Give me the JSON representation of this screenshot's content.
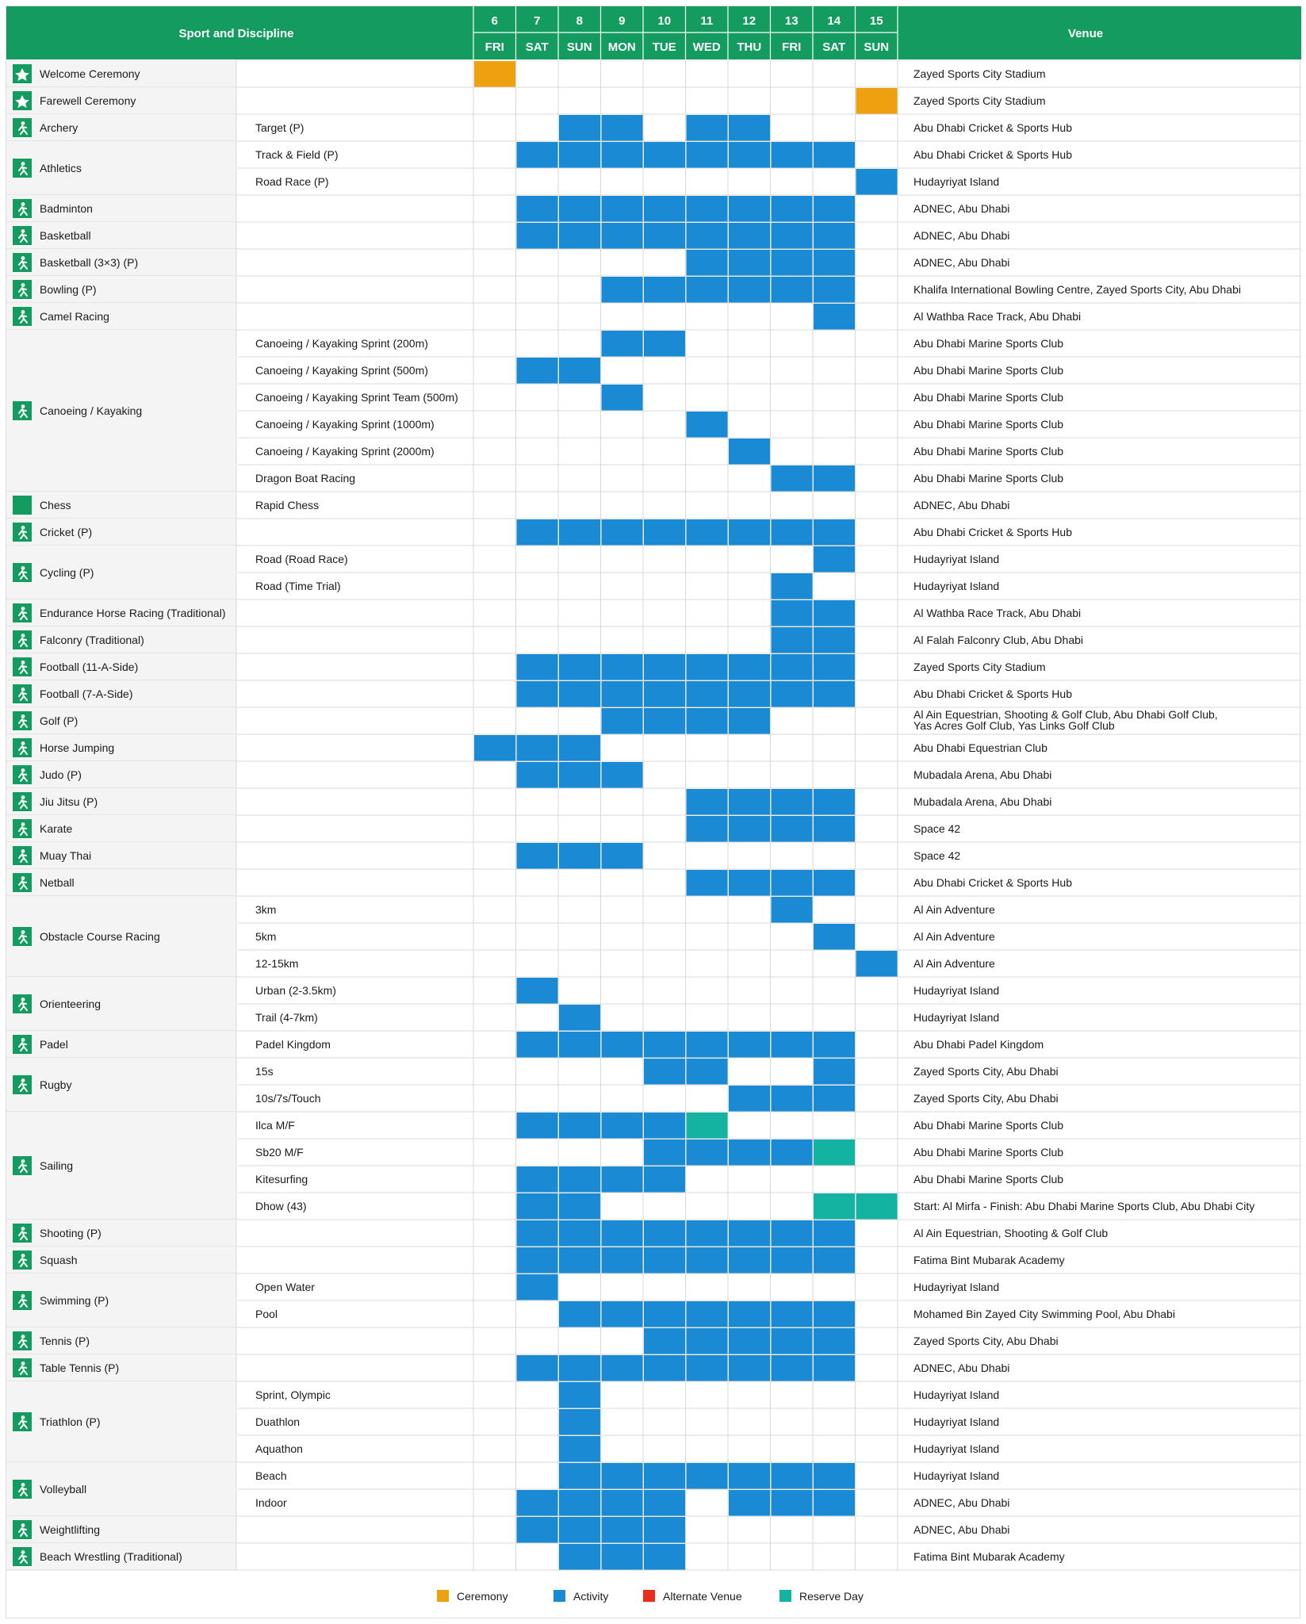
{
  "header": {
    "sport_label": "Sport and Discipline",
    "venue_label": "Venue",
    "days": [
      {
        "num": "6",
        "dow": "FRI"
      },
      {
        "num": "7",
        "dow": "SAT"
      },
      {
        "num": "8",
        "dow": "SUN"
      },
      {
        "num": "9",
        "dow": "MON"
      },
      {
        "num": "10",
        "dow": "TUE"
      },
      {
        "num": "11",
        "dow": "WED"
      },
      {
        "num": "12",
        "dow": "THU"
      },
      {
        "num": "13",
        "dow": "FRI"
      },
      {
        "num": "14",
        "dow": "SAT"
      },
      {
        "num": "15",
        "dow": "SUN"
      }
    ]
  },
  "colors": {
    "header": "#149b5f",
    "ceremony": "#eea10f",
    "activity": "#1a8ad4",
    "alternate": "#ec2b1c",
    "reserve": "#14b2a1",
    "sport_bg": "#f4f4f4",
    "line": "#d9d9d9"
  },
  "sports": [
    {
      "name": "Welcome Ceremony",
      "icon": "star-icon",
      "rows": [
        {
          "discipline": "",
          "venue": "Zayed Sports City Stadium",
          "cells": "C........."
        }
      ]
    },
    {
      "name": "Farewell Ceremony",
      "icon": "star-icon",
      "rows": [
        {
          "discipline": "",
          "venue": "Zayed Sports City Stadium",
          "cells": ".........C"
        }
      ]
    },
    {
      "name": "Archery",
      "icon": "archery-icon",
      "rows": [
        {
          "discipline": "Target (P)",
          "venue": "Abu Dhabi Cricket & Sports Hub",
          "cells": "..AA.AA..."
        }
      ]
    },
    {
      "name": "Athletics",
      "icon": "athletics-icon",
      "rows": [
        {
          "discipline": "Track & Field (P)",
          "venue": "Abu Dhabi Cricket & Sports Hub",
          "cells": ".AAAAAAAA."
        },
        {
          "discipline": "Road Race (P)",
          "venue": "Hudayriyat Island",
          "cells": ".........A"
        }
      ]
    },
    {
      "name": "Badminton",
      "icon": "badminton-icon",
      "rows": [
        {
          "discipline": "",
          "venue": "ADNEC, Abu Dhabi",
          "cells": ".AAAAAAAA."
        }
      ]
    },
    {
      "name": "Basketball",
      "icon": "basketball-icon",
      "rows": [
        {
          "discipline": "",
          "venue": "ADNEC, Abu Dhabi",
          "cells": ".AAAAAAAA."
        }
      ]
    },
    {
      "name": "Basketball (3×3) (P)",
      "icon": "basketball-icon",
      "rows": [
        {
          "discipline": "",
          "venue": "ADNEC, Abu Dhabi",
          "cells": ".....AAAA."
        }
      ]
    },
    {
      "name": "Bowling (P)",
      "icon": "bowling-icon",
      "rows": [
        {
          "discipline": "",
          "venue": "Khalifa International Bowling Centre, Zayed Sports City, Abu Dhabi",
          "cells": "...AAAAAA."
        }
      ]
    },
    {
      "name": "Camel Racing",
      "icon": "camel-icon",
      "rows": [
        {
          "discipline": "",
          "venue": "Al Wathba Race Track, Abu Dhabi",
          "cells": "........A."
        }
      ]
    },
    {
      "name": "Canoeing / Kayaking",
      "icon": "canoe-icon",
      "rows": [
        {
          "discipline": "Canoeing / Kayaking Sprint (200m)",
          "venue": "Abu Dhabi Marine Sports Club",
          "cells": "...AA....."
        },
        {
          "discipline": "Canoeing / Kayaking Sprint  (500m)",
          "venue": "Abu Dhabi Marine Sports Club",
          "cells": ".AA......."
        },
        {
          "discipline": "Canoeing / Kayaking Sprint Team (500m)",
          "venue": "Abu Dhabi Marine Sports Club",
          "cells": "...A......"
        },
        {
          "discipline": "Canoeing / Kayaking  Sprint (1000m)",
          "venue": "Abu Dhabi Marine Sports Club",
          "cells": ".....A...."
        },
        {
          "discipline": "Canoeing / Kayaking  Sprint (2000m)",
          "venue": "Abu Dhabi Marine Sports Club",
          "cells": "......A..."
        },
        {
          "discipline": "Dragon Boat Racing",
          "venue": "Abu Dhabi Marine Sports Club",
          "cells": ".......AA."
        }
      ]
    },
    {
      "name": "Chess",
      "icon": "chess-icon",
      "rows": [
        {
          "discipline": "Rapid Chess",
          "venue": "ADNEC, Abu Dhabi",
          "cells": ".........."
        }
      ]
    },
    {
      "name": "Cricket (P)",
      "icon": "cricket-icon",
      "rows": [
        {
          "discipline": "",
          "venue": "Abu Dhabi Cricket & Sports Hub",
          "cells": ".AAAAAAAA."
        }
      ]
    },
    {
      "name": "Cycling (P)",
      "icon": "cycling-icon",
      "rows": [
        {
          "discipline": "Road (Road Race)",
          "venue": "Hudayriyat Island",
          "cells": "........A."
        },
        {
          "discipline": "Road (Time Trial)",
          "venue": "Hudayriyat Island",
          "cells": ".......A.."
        }
      ]
    },
    {
      "name": "Endurance Horse Racing (Traditional)",
      "icon": "horse-icon",
      "rows": [
        {
          "discipline": "",
          "venue": "Al Wathba Race Track, Abu Dhabi",
          "cells": ".......AA."
        }
      ]
    },
    {
      "name": "Falconry (Traditional)",
      "icon": "falcon-icon",
      "rows": [
        {
          "discipline": "",
          "venue": "Al Falah Falconry Club, Abu Dhabi",
          "cells": ".......AA."
        }
      ]
    },
    {
      "name": "Football (11-A-Side)",
      "icon": "football-icon",
      "rows": [
        {
          "discipline": "",
          "venue": "Zayed Sports City Stadium",
          "cells": ".AAAAAAAA."
        }
      ]
    },
    {
      "name": "Football (7-A-Side)",
      "icon": "football-icon",
      "rows": [
        {
          "discipline": "",
          "venue": "Abu Dhabi Cricket & Sports Hub",
          "cells": ".AAAAAAAA."
        }
      ]
    },
    {
      "name": "Golf (P)",
      "icon": "golf-icon",
      "rows": [
        {
          "discipline": "",
          "venue": "Al Ain Equestrian, Shooting & Golf Club, Abu Dhabi Golf Club,",
          "venue2": "Yas Acres Golf Club, Yas Links Golf Club",
          "cells": "...AAAA..."
        }
      ]
    },
    {
      "name": "Horse Jumping",
      "icon": "horse-icon",
      "rows": [
        {
          "discipline": "",
          "venue": "Abu Dhabi Equestrian Club",
          "cells": "AAA......."
        }
      ]
    },
    {
      "name": "Judo (P)",
      "icon": "judo-icon",
      "rows": [
        {
          "discipline": "",
          "venue": "Mubadala Arena, Abu Dhabi",
          "cells": ".AAA......"
        }
      ]
    },
    {
      "name": "Jiu Jitsu (P)",
      "icon": "jiujitsu-icon",
      "rows": [
        {
          "discipline": "",
          "venue": "Mubadala Arena, Abu Dhabi",
          "cells": ".....AAAA."
        }
      ]
    },
    {
      "name": "Karate",
      "icon": "karate-icon",
      "rows": [
        {
          "discipline": "",
          "venue": "Space 42",
          "cells": ".....AAAA."
        }
      ]
    },
    {
      "name": "Muay Thai",
      "icon": "muaythai-icon",
      "rows": [
        {
          "discipline": "",
          "venue": "Space 42",
          "cells": ".AAA......"
        }
      ]
    },
    {
      "name": "Netball",
      "icon": "netball-icon",
      "rows": [
        {
          "discipline": "",
          "venue": "Abu Dhabi Cricket & Sports Hub",
          "cells": ".....AAAA."
        }
      ]
    },
    {
      "name": "Obstacle Course Racing",
      "icon": "obstacle-icon",
      "rows": [
        {
          "discipline": "3km",
          "venue": "Al Ain Adventure",
          "cells": ".......A.."
        },
        {
          "discipline": "5km",
          "venue": "Al Ain Adventure",
          "cells": "........A."
        },
        {
          "discipline": "12-15km",
          "venue": "Al Ain Adventure",
          "cells": ".........A"
        }
      ]
    },
    {
      "name": "Orienteering",
      "icon": "orienteering-icon",
      "rows": [
        {
          "discipline": "Urban (2-3.5km)",
          "venue": "Hudayriyat Island",
          "cells": ".A........"
        },
        {
          "discipline": "Trail  (4-7km)",
          "venue": "Hudayriyat Island",
          "cells": "..A......."
        }
      ]
    },
    {
      "name": "Padel",
      "icon": "padel-icon",
      "rows": [
        {
          "discipline": "Padel Kingdom",
          "venue": "Abu Dhabi Padel Kingdom",
          "cells": ".AAAAAAAA."
        }
      ]
    },
    {
      "name": "Rugby",
      "icon": "rugby-icon",
      "rows": [
        {
          "discipline": "15s",
          "venue": "Zayed Sports City, Abu Dhabi",
          "cells": "....AA..A."
        },
        {
          "discipline": "10s/7s/Touch",
          "venue": "Zayed Sports City, Abu Dhabi",
          "cells": "......AAA."
        }
      ]
    },
    {
      "name": "Sailing",
      "icon": "sailing-icon",
      "rows": [
        {
          "discipline": "Ilca M/F",
          "venue": "Abu Dhabi Marine Sports Club",
          "cells": ".AAAAR...."
        },
        {
          "discipline": "Sb20 M/F",
          "venue": "Abu Dhabi Marine Sports Club",
          "cells": "....AAAAR."
        },
        {
          "discipline": "Kitesurfing",
          "venue": "Abu Dhabi Marine Sports Club",
          "cells": ".AAAA....."
        },
        {
          "discipline": "Dhow (43)",
          "venue": "Start: Al Mirfa - Finish: Abu Dhabi Marine Sports Club,  Abu Dhabi City",
          "cells": ".AA.....RR"
        }
      ]
    },
    {
      "name": "Shooting (P)",
      "icon": "shooting-icon",
      "rows": [
        {
          "discipline": "",
          "venue": "Al Ain Equestrian, Shooting & Golf Club",
          "cells": ".AAAAAAAA."
        }
      ]
    },
    {
      "name": "Squash",
      "icon": "squash-icon",
      "rows": [
        {
          "discipline": "",
          "venue": "Fatima Bint Mubarak Academy",
          "cells": ".AAAAAAAA."
        }
      ]
    },
    {
      "name": "Swimming  (P)",
      "icon": "swimming-icon",
      "rows": [
        {
          "discipline": "Open Water",
          "venue": "Hudayriyat Island",
          "cells": ".A........"
        },
        {
          "discipline": "Pool",
          "venue": "Mohamed Bin Zayed City Swimming Pool, Abu Dhabi",
          "cells": "..AAAAAAA."
        }
      ]
    },
    {
      "name": "Tennis (P)",
      "icon": "tennis-icon",
      "rows": [
        {
          "discipline": "",
          "venue": "Zayed Sports City, Abu Dhabi",
          "cells": "....AAAAA."
        }
      ]
    },
    {
      "name": "Table Tennis (P)",
      "icon": "tabletennis-icon",
      "rows": [
        {
          "discipline": "",
          "venue": "ADNEC, Abu Dhabi",
          "cells": ".AAAAAAAA."
        }
      ]
    },
    {
      "name": "Triathlon (P)",
      "icon": "triathlon-icon",
      "rows": [
        {
          "discipline": "Sprint, Olympic",
          "venue": "Hudayriyat Island",
          "cells": "..A......."
        },
        {
          "discipline": "Duathlon",
          "venue": "Hudayriyat Island",
          "cells": "..A......."
        },
        {
          "discipline": "Aquathon",
          "venue": "Hudayriyat Island",
          "cells": "..A......."
        }
      ]
    },
    {
      "name": "Volleyball",
      "icon": "volleyball-icon",
      "rows": [
        {
          "discipline": "Beach",
          "venue": "Hudayriyat Island",
          "cells": "..AAAAAAA."
        },
        {
          "discipline": "Indoor",
          "venue": "ADNEC, Abu Dhabi",
          "cells": ".AAAA.AAA."
        }
      ]
    },
    {
      "name": "Weightlifting",
      "icon": "weightlifting-icon",
      "rows": [
        {
          "discipline": "",
          "venue": "ADNEC, Abu Dhabi",
          "cells": ".AAAA....."
        }
      ]
    },
    {
      "name": "Beach Wrestling (Traditional)",
      "icon": "wrestling-icon",
      "rows": [
        {
          "discipline": "",
          "venue": "Fatima Bint Mubarak Academy",
          "cells": "..AAA....."
        }
      ]
    }
  ],
  "legend": [
    {
      "label": "Ceremony",
      "key": "ceremony"
    },
    {
      "label": "Activity",
      "key": "activity"
    },
    {
      "label": "Alternate Venue",
      "key": "alternate"
    },
    {
      "label": "Reserve Day",
      "key": "reserve"
    }
  ]
}
